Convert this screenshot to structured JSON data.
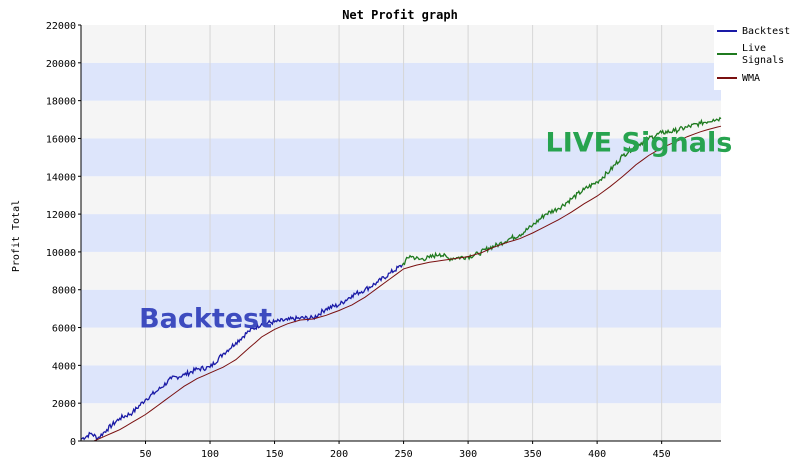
{
  "chart_data": {
    "type": "line",
    "title": "Net Profit graph",
    "xlabel": "",
    "ylabel": "Profit Total",
    "xlim": [
      0,
      496
    ],
    "ylim": [
      0,
      22000
    ],
    "x_ticks": [
      50,
      100,
      150,
      200,
      250,
      300,
      350,
      400,
      450
    ],
    "y_ticks": [
      0,
      2000,
      4000,
      6000,
      8000,
      10000,
      12000,
      14000,
      16000,
      18000,
      20000,
      22000
    ],
    "grid": true,
    "legend_position": "top-right",
    "colors": {
      "backtest": "#1a1aa6",
      "live": "#1f7a1f",
      "wma": "#7a1010",
      "band_blue": "#dde5fb",
      "band_gray": "#f5f5f5",
      "annot_backtest": "#3d4bbf",
      "annot_live": "#27a34f"
    },
    "series": [
      {
        "name": "Backtest",
        "points": [
          [
            0,
            100
          ],
          [
            8,
            400
          ],
          [
            13,
            150
          ],
          [
            20,
            600
          ],
          [
            30,
            1200
          ],
          [
            40,
            1500
          ],
          [
            50,
            2200
          ],
          [
            60,
            2700
          ],
          [
            70,
            3300
          ],
          [
            80,
            3500
          ],
          [
            90,
            3800
          ],
          [
            100,
            3900
          ],
          [
            110,
            4600
          ],
          [
            120,
            5200
          ],
          [
            130,
            5800
          ],
          [
            140,
            6200
          ],
          [
            150,
            6300
          ],
          [
            160,
            6400
          ],
          [
            170,
            6500
          ],
          [
            180,
            6500
          ],
          [
            190,
            7000
          ],
          [
            200,
            7200
          ],
          [
            210,
            7700
          ],
          [
            220,
            8000
          ],
          [
            230,
            8400
          ],
          [
            240,
            8900
          ],
          [
            249,
            9300
          ]
        ]
      },
      {
        "name": "Live Signals",
        "points": [
          [
            249,
            9300
          ],
          [
            255,
            9800
          ],
          [
            262,
            9600
          ],
          [
            270,
            9700
          ],
          [
            278,
            9900
          ],
          [
            285,
            9650
          ],
          [
            292,
            9700
          ],
          [
            300,
            9750
          ],
          [
            308,
            9900
          ],
          [
            316,
            10200
          ],
          [
            324,
            10400
          ],
          [
            332,
            10700
          ],
          [
            340,
            10900
          ],
          [
            350,
            11400
          ],
          [
            360,
            12000
          ],
          [
            370,
            12300
          ],
          [
            380,
            12800
          ],
          [
            390,
            13300
          ],
          [
            400,
            13700
          ],
          [
            410,
            14300
          ],
          [
            420,
            15100
          ],
          [
            430,
            15600
          ],
          [
            440,
            16000
          ],
          [
            450,
            16300
          ],
          [
            460,
            16400
          ],
          [
            470,
            16600
          ],
          [
            480,
            16800
          ],
          [
            490,
            17000
          ],
          [
            496,
            17050
          ]
        ]
      },
      {
        "name": "WMA",
        "points": [
          [
            10,
            0
          ],
          [
            20,
            300
          ],
          [
            30,
            600
          ],
          [
            40,
            1000
          ],
          [
            50,
            1400
          ],
          [
            60,
            1900
          ],
          [
            70,
            2400
          ],
          [
            80,
            2900
          ],
          [
            90,
            3300
          ],
          [
            100,
            3600
          ],
          [
            110,
            3900
          ],
          [
            120,
            4300
          ],
          [
            130,
            4900
          ],
          [
            140,
            5500
          ],
          [
            150,
            5900
          ],
          [
            160,
            6200
          ],
          [
            170,
            6400
          ],
          [
            180,
            6450
          ],
          [
            190,
            6650
          ],
          [
            200,
            6900
          ],
          [
            210,
            7200
          ],
          [
            220,
            7600
          ],
          [
            230,
            8100
          ],
          [
            240,
            8600
          ],
          [
            250,
            9100
          ],
          [
            260,
            9300
          ],
          [
            270,
            9450
          ],
          [
            280,
            9550
          ],
          [
            290,
            9650
          ],
          [
            300,
            9750
          ],
          [
            310,
            9950
          ],
          [
            320,
            10250
          ],
          [
            330,
            10500
          ],
          [
            340,
            10700
          ],
          [
            350,
            11000
          ],
          [
            360,
            11350
          ],
          [
            370,
            11700
          ],
          [
            380,
            12100
          ],
          [
            390,
            12550
          ],
          [
            400,
            12950
          ],
          [
            410,
            13450
          ],
          [
            420,
            14000
          ],
          [
            430,
            14600
          ],
          [
            440,
            15100
          ],
          [
            450,
            15500
          ],
          [
            460,
            15800
          ],
          [
            470,
            16100
          ],
          [
            480,
            16350
          ],
          [
            490,
            16550
          ],
          [
            496,
            16650
          ]
        ]
      }
    ],
    "annotations": [
      {
        "text": "Backtest",
        "x": 45,
        "y": 6000,
        "color": "annot_backtest"
      },
      {
        "text": "LIVE Signals",
        "x": 360,
        "y": 15300,
        "color": "annot_live"
      }
    ]
  }
}
